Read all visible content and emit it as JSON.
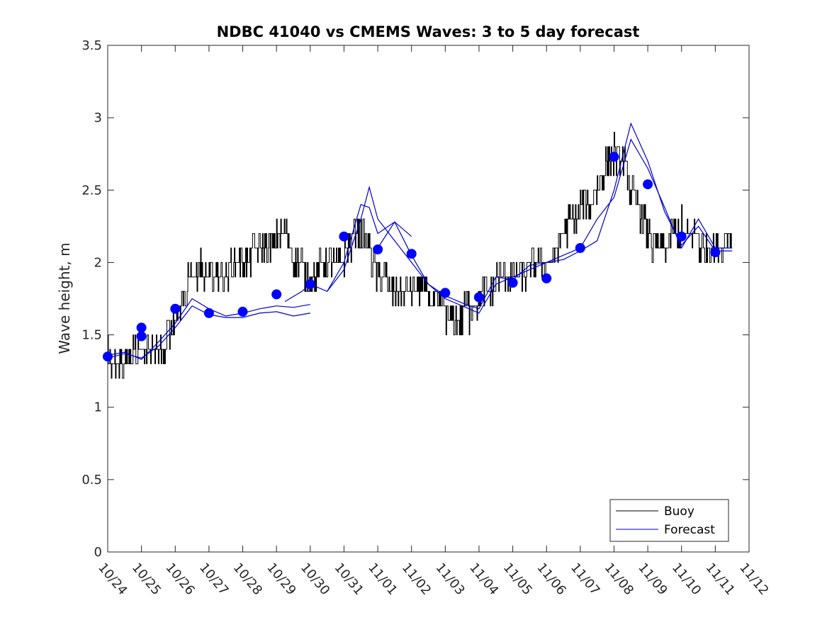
{
  "chart_data": {
    "type": "line",
    "title": "NDBC 41040 vs CMEMS Waves: 3 to 5 day forecast",
    "xlabel": "",
    "ylabel": "Wave height, m",
    "xlim": [
      "10/24",
      "11/12"
    ],
    "ylim": [
      0,
      3.5
    ],
    "x_ticks": [
      "10/24",
      "10/25",
      "10/26",
      "10/27",
      "10/28",
      "10/29",
      "10/30",
      "10/31",
      "11/01",
      "11/02",
      "11/03",
      "11/04",
      "11/05",
      "11/06",
      "11/07",
      "11/08",
      "11/09",
      "11/10",
      "11/11",
      "11/12"
    ],
    "y_ticks": [
      "0",
      "0.5",
      "1",
      "1.5",
      "2",
      "2.5",
      "3",
      "3.5"
    ],
    "grid": false,
    "legend_position": "bottom-right",
    "legend": [
      "Buoy",
      "Forecast"
    ],
    "colors": {
      "buoy": "#000000",
      "forecast": "#0000cc",
      "markers": "#0000ff"
    },
    "series": [
      {
        "name": "Buoy",
        "x_unit": "days since 10/24",
        "x": [
          0,
          0.25,
          0.5,
          0.75,
          1,
          1.25,
          1.5,
          1.75,
          2,
          2.25,
          2.5,
          2.75,
          3,
          3.25,
          3.5,
          3.75,
          4,
          4.25,
          4.5,
          4.75,
          5,
          5.25,
          5.5,
          5.75,
          6,
          6.25,
          6.5,
          6.75,
          7,
          7.25,
          7.5,
          7.75,
          8,
          8.25,
          8.5,
          8.75,
          9,
          9.25,
          9.5,
          9.75,
          10,
          10.25,
          10.5,
          10.75,
          11,
          11.25,
          11.5,
          11.75,
          12,
          12.25,
          12.5,
          12.75,
          13,
          13.25,
          13.5,
          13.75,
          14,
          14.25,
          14.5,
          14.75,
          15,
          15.25,
          15.5,
          15.75,
          16,
          16.25,
          16.5,
          16.75,
          17,
          17.25,
          17.5,
          17.75,
          18,
          18.25,
          18.5
        ],
        "values": [
          1.35,
          1.3,
          1.3,
          1.35,
          1.35,
          1.4,
          1.35,
          1.45,
          1.6,
          1.8,
          1.9,
          1.95,
          1.9,
          1.95,
          1.9,
          2.0,
          2.0,
          2.05,
          2.1,
          2.05,
          2.15,
          2.2,
          2.0,
          1.95,
          1.9,
          1.95,
          2.0,
          1.95,
          2.05,
          2.15,
          2.2,
          2.1,
          1.9,
          1.85,
          1.8,
          1.75,
          1.8,
          1.85,
          1.75,
          1.7,
          1.65,
          1.6,
          1.65,
          1.65,
          1.75,
          1.8,
          1.85,
          1.9,
          1.85,
          1.9,
          1.95,
          2.0,
          2.0,
          2.05,
          2.2,
          2.3,
          2.35,
          2.4,
          2.5,
          2.65,
          2.75,
          2.7,
          2.5,
          2.35,
          2.2,
          2.05,
          2.05,
          2.2,
          2.25,
          2.2,
          2.15,
          2.1,
          2.1,
          2.15,
          2.15
        ]
      },
      {
        "name": "Forecast",
        "runs": [
          {
            "x": [
              0,
              0.5,
              1,
              1.5,
              2,
              2.5,
              3,
              3.5,
              4,
              4.5,
              5,
              5.5,
              6
            ],
            "values": [
              1.36,
              1.38,
              1.33,
              1.45,
              1.58,
              1.75,
              1.68,
              1.63,
              1.65,
              1.68,
              1.7,
              1.69,
              1.71
            ]
          },
          {
            "x": [
              0,
              0.5,
              1,
              1.5,
              2,
              2.5,
              3,
              3.5,
              4,
              4.5,
              5,
              5.5,
              6
            ],
            "values": [
              1.34,
              1.37,
              1.34,
              1.42,
              1.55,
              1.7,
              1.64,
              1.62,
              1.62,
              1.65,
              1.66,
              1.63,
              1.65
            ]
          },
          {
            "x": [
              5.25,
              5.75,
              6,
              6.5,
              7,
              7.5,
              7.75,
              8,
              8.5,
              9
            ],
            "values": [
              1.73,
              1.8,
              1.85,
              1.8,
              2.0,
              2.4,
              2.38,
              2.2,
              2.28,
              2.18
            ]
          },
          {
            "x": [
              6.5,
              7,
              7.5,
              7.75,
              8,
              8.5,
              9,
              9.5,
              10,
              10.5,
              11,
              11.5,
              12,
              12.5,
              13,
              13.5,
              14,
              14.5,
              15,
              15.5,
              16,
              16.5,
              17,
              17.5,
              18,
              18.5
            ],
            "values": [
              1.8,
              1.95,
              2.3,
              2.52,
              2.3,
              2.15,
              2.0,
              1.85,
              1.77,
              1.72,
              1.68,
              1.9,
              1.88,
              1.98,
              2.0,
              2.02,
              2.08,
              2.15,
              2.5,
              2.96,
              2.7,
              2.35,
              2.12,
              2.25,
              2.08,
              2.08
            ]
          },
          {
            "x": [
              8,
              8.5,
              9,
              9.5,
              10,
              10.5,
              11,
              11.5,
              12,
              12.5,
              13,
              13.5,
              14,
              14.5,
              15,
              15.5,
              16,
              16.5,
              17,
              17.5,
              18,
              18.5
            ],
            "values": [
              2.1,
              2.28,
              2.05,
              1.85,
              1.75,
              1.7,
              1.65,
              1.85,
              1.9,
              1.95,
              2.0,
              2.05,
              2.1,
              2.3,
              2.45,
              2.85,
              2.65,
              2.38,
              2.1,
              2.3,
              2.1,
              2.1
            ]
          }
        ]
      },
      {
        "name": "",
        "x": [
          0,
          1,
          1,
          2,
          3,
          4,
          5,
          6,
          7,
          8,
          9,
          10,
          11,
          12,
          13,
          14,
          15,
          16,
          17,
          18
        ],
        "values": [
          1.35,
          1.55,
          1.49,
          1.68,
          1.65,
          1.66,
          1.78,
          1.85,
          2.18,
          2.09,
          2.06,
          1.79,
          1.76,
          1.86,
          1.89,
          2.1,
          2.73,
          2.54,
          2.18,
          2.07
        ]
      }
    ]
  }
}
